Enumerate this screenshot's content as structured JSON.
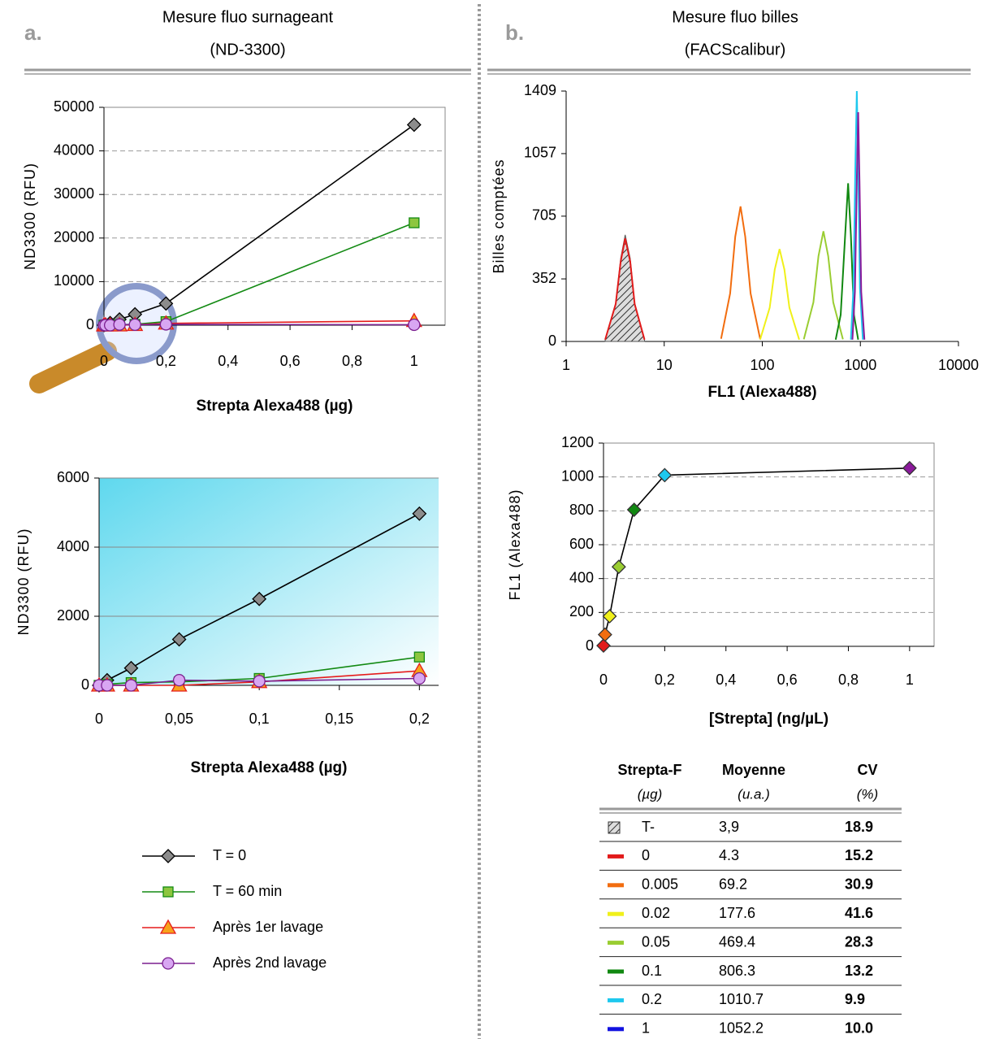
{
  "panels": [
    {
      "label": "a.",
      "title": "Mesure fluo surnageant",
      "subtitle": "(ND-3300)"
    },
    {
      "label": "b.",
      "title": "Mesure fluo billes",
      "subtitle": "(FACScalibur)"
    }
  ],
  "chart_data": [
    {
      "type": "line",
      "xlabel": "Strepta Alexa488 (µg)",
      "ylabel": "ND3300 (RFU)",
      "x": [
        0,
        0.005,
        0.02,
        0.05,
        0.1,
        0.2,
        1
      ],
      "xlim": [
        0,
        1.1
      ],
      "xticks": [
        0,
        {
          "value": 0.2,
          "label": "0,2"
        },
        {
          "value": 0.4,
          "label": "0,4"
        },
        {
          "value": 0.6,
          "label": "0,6"
        },
        {
          "value": 0.8,
          "label": "0,8"
        },
        1
      ],
      "ylim": [
        0,
        50000
      ],
      "yticks": [
        0,
        10000,
        20000,
        30000,
        40000,
        50000
      ],
      "grid": true,
      "grid_style": "dashed",
      "series": [
        {
          "name": "T = 0",
          "color": "#000000",
          "marker": "diamond",
          "marker_color": "#8c8c8c",
          "values": [
            0,
            150,
            500,
            1330,
            2500,
            4970,
            46000
          ]
        },
        {
          "name": "T = 60 min",
          "color": "#138a13",
          "marker": "square",
          "marker_color": "#8dc63f",
          "values": [
            0,
            30,
            80,
            100,
            200,
            820,
            23500
          ]
        },
        {
          "name": "Après 1er lavage",
          "color": "#e51c1c",
          "marker": "triangle",
          "marker_color": "#f7a21b",
          "values": [
            0,
            0,
            0,
            0,
            100,
            420,
            1000
          ]
        },
        {
          "name": "Après 2nd lavage",
          "color": "#7b1f8f",
          "marker": "circle",
          "marker_color": "#d8a6f2",
          "values": [
            0,
            0,
            0,
            150,
            120,
            200,
            100
          ]
        }
      ]
    },
    {
      "type": "line",
      "xlabel": "Strepta Alexa488 (µg)",
      "ylabel": "ND3300 (RFU)",
      "x": [
        0,
        0.005,
        0.02,
        0.05,
        0.1,
        0.2
      ],
      "xlim": [
        0,
        0.212
      ],
      "xticks": [
        0,
        {
          "value": 0.05,
          "label": "0,05"
        },
        {
          "value": 0.1,
          "label": "0,1"
        },
        {
          "value": 0.15,
          "label": "0,15"
        },
        {
          "value": 0.2,
          "label": "0,2"
        }
      ],
      "ylim": [
        0,
        6000
      ],
      "yticks": [
        0,
        2000,
        4000,
        6000
      ],
      "grid": true,
      "grid_style": "solid",
      "series": [
        {
          "color": "#000000",
          "marker": "diamond",
          "marker_color": "#8c8c8c",
          "values": [
            0,
            150,
            500,
            1330,
            2500,
            4970
          ]
        },
        {
          "color": "#138a13",
          "marker": "square",
          "marker_color": "#8dc63f",
          "values": [
            0,
            30,
            80,
            100,
            200,
            820
          ]
        },
        {
          "color": "#e51c1c",
          "marker": "triangle",
          "marker_color": "#f7a21b",
          "values": [
            0,
            0,
            0,
            0,
            100,
            420
          ]
        },
        {
          "color": "#7b1f8f",
          "marker": "circle",
          "marker_color": "#d8a6f2",
          "values": [
            0,
            0,
            0,
            150,
            120,
            200
          ]
        }
      ]
    },
    {
      "type": "line",
      "xscale": "log",
      "xlabel": "FL1 (Alexa488)",
      "ylabel": "Billes comptées",
      "xlim": [
        1,
        10000
      ],
      "xticks": [
        1,
        10,
        100,
        1000,
        10000
      ],
      "ylim": [
        0,
        1409
      ],
      "yticks": [
        0,
        352,
        705,
        1057,
        1409
      ],
      "grid": false,
      "series": [
        {
          "color": "#555555",
          "fill": "hatch",
          "x": [
            2.5,
            3.2,
            3.6,
            4,
            4.5,
            5,
            6.3
          ],
          "values": [
            12,
            216,
            468,
            600,
            468,
            216,
            12
          ]
        },
        {
          "color": "#e21b1b",
          "x": [
            2.5,
            3.2,
            3.6,
            4,
            4.5,
            5,
            6.3
          ],
          "values": [
            10,
            210,
            450,
            580,
            450,
            210,
            10
          ]
        },
        {
          "color": "#f26d0f",
          "x": [
            38,
            47,
            53,
            60,
            67,
            76,
            95
          ],
          "values": [
            15,
            270,
            590,
            760,
            590,
            270,
            15
          ]
        },
        {
          "color": "#f0f01a",
          "x": [
            95,
            119,
            134,
            150,
            168,
            189,
            238
          ],
          "values": [
            10,
            190,
            405,
            520,
            405,
            190,
            10
          ]
        },
        {
          "color": "#9acd32",
          "x": [
            265,
            332,
            374,
            420,
            470,
            529,
            664
          ],
          "values": [
            12,
            220,
            480,
            620,
            480,
            220,
            12
          ]
        },
        {
          "color": "#118811",
          "x": [
            560,
            630,
            700,
            750,
            800,
            860,
            950
          ],
          "values": [
            10,
            150,
            600,
            890,
            600,
            150,
            10
          ]
        },
        {
          "color": "#1ec8ee",
          "x": [
            800,
            850,
            890,
            920,
            950,
            990,
            1060
          ],
          "values": [
            10,
            300,
            1000,
            1409,
            1000,
            300,
            10
          ]
        },
        {
          "color": "#8b1a9b",
          "x": [
            830,
            880,
            920,
            950,
            980,
            1020,
            1100
          ],
          "values": [
            10,
            280,
            900,
            1290,
            900,
            280,
            10
          ]
        }
      ]
    },
    {
      "type": "line",
      "xlabel": "[Strepta] (ng/µL)",
      "ylabel": "FL1 (Alexa488)",
      "x": [
        0,
        0.005,
        0.02,
        0.05,
        0.1,
        0.2,
        1
      ],
      "xlim": [
        0,
        1.08
      ],
      "xticks": [
        0,
        {
          "value": 0.2,
          "label": "0,2"
        },
        {
          "value": 0.4,
          "label": "0,4"
        },
        {
          "value": 0.6,
          "label": "0,6"
        },
        {
          "value": 0.8,
          "label": "0,8"
        },
        1
      ],
      "ylim": [
        0,
        1200
      ],
      "yticks": [
        0,
        200,
        400,
        600,
        800,
        1000,
        1200
      ],
      "grid": true,
      "grid_style": "dashed",
      "series": [
        {
          "color": "#000000",
          "marker": "diamond",
          "point_colors": [
            "#e21b1b",
            "#f26d0f",
            "#f0f01a",
            "#9acd32",
            "#118811",
            "#1ec8ee",
            "#8b1a9b"
          ],
          "values": [
            4.3,
            69.2,
            177.6,
            469.4,
            806.3,
            1010.7,
            1052.2
          ]
        }
      ]
    }
  ],
  "table": {
    "header": [
      [
        "Strepta-F",
        "(µg)"
      ],
      [
        "Moyenne",
        "(u.a.)"
      ],
      [
        "CV",
        "(%)"
      ]
    ],
    "rows": [
      {
        "pattern": "hatch",
        "cells": [
          "T-",
          "3,9",
          "18.9"
        ]
      },
      {
        "color": "#e21b1b",
        "cells": [
          "0",
          "4.3",
          "15.2"
        ]
      },
      {
        "color": "#f26d0f",
        "cells": [
          "0.005",
          "69.2",
          "30.9"
        ]
      },
      {
        "color": "#f0f01a",
        "cells": [
          "0.02",
          "177.6",
          "41.6"
        ]
      },
      {
        "color": "#9acd32",
        "cells": [
          "0.05",
          "469.4",
          "28.3"
        ]
      },
      {
        "color": "#118811",
        "cells": [
          "0.1",
          "806.3",
          "13.2"
        ]
      },
      {
        "color": "#1ec8ee",
        "cells": [
          "0.2",
          "1010.7",
          "9.9"
        ]
      },
      {
        "color": "#1212e0",
        "cells": [
          "1",
          "1052.2",
          "10.0"
        ]
      }
    ]
  }
}
